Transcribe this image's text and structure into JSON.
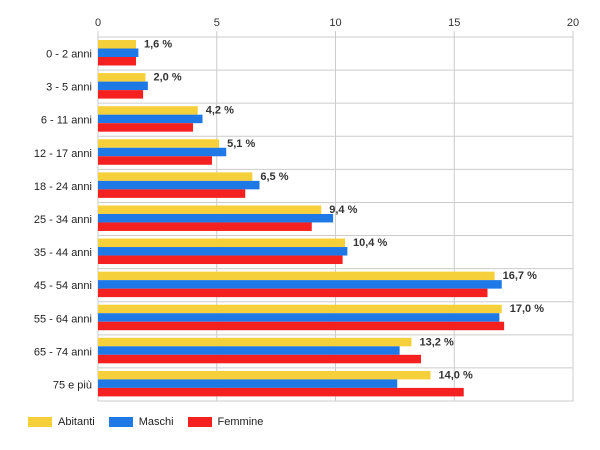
{
  "chart_data": {
    "type": "bar",
    "orientation": "horizontal",
    "categories": [
      "0 - 2 anni",
      "3 - 5 anni",
      "6 - 11 anni",
      "12 - 17 anni",
      "18 - 24 anni",
      "25 - 34 anni",
      "35 - 44 anni",
      "45 - 54 anni",
      "55 - 64 anni",
      "65 - 74 anni",
      "75 e più"
    ],
    "series": [
      {
        "name": "Abitanti",
        "color": "#f6d03a",
        "values": [
          1.6,
          2.0,
          4.2,
          5.1,
          6.5,
          9.4,
          10.4,
          16.7,
          17.0,
          13.2,
          14.0
        ]
      },
      {
        "name": "Maschi",
        "color": "#1e78e6",
        "values": [
          1.7,
          2.1,
          4.4,
          5.4,
          6.8,
          9.9,
          10.5,
          17.0,
          16.9,
          12.7,
          12.6
        ]
      },
      {
        "name": "Femmine",
        "color": "#f52020",
        "values": [
          1.6,
          1.9,
          4.0,
          4.8,
          6.2,
          9.0,
          10.3,
          16.4,
          17.1,
          13.6,
          15.4
        ]
      }
    ],
    "data_labels": [
      "1,6 %",
      "2,0 %",
      "4,2 %",
      "5,1 %",
      "6,5 %",
      "9,4 %",
      "10,4 %",
      "16,7 %",
      "17,0 %",
      "13,2 %",
      "14,0 %"
    ],
    "x_ticks": [
      0,
      5,
      10,
      15,
      20
    ],
    "xlim": [
      0,
      20
    ],
    "grid": true,
    "legend_position": "bottom-left"
  }
}
